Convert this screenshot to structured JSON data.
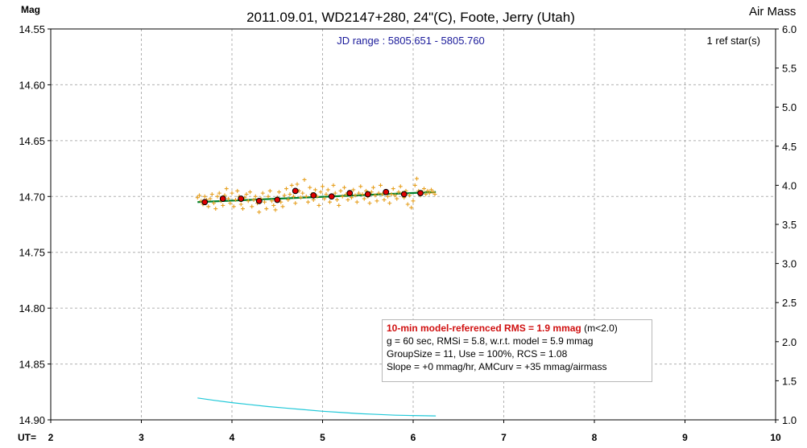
{
  "chart_data": {
    "type": "scatter",
    "title": "2011.09.01, WD2147+280, 24\"(C), Foote, Jerry (Utah)",
    "ylabel": "Mag",
    "y2label": "Air Mass",
    "xlabel": "UT=",
    "xlim": [
      2,
      10
    ],
    "ylim": [
      14.9,
      14.55
    ],
    "y2lim": [
      1.0,
      6.0
    ],
    "x_ticks": [
      "2",
      "3",
      "4",
      "5",
      "6",
      "7",
      "8",
      "9",
      "10"
    ],
    "y_ticks": [
      "14.55",
      "14.60",
      "14.65",
      "14.70",
      "14.75",
      "14.80",
      "14.85",
      "14.90"
    ],
    "y2_ticks": [
      "6.0",
      "5.5",
      "5.0",
      "4.5",
      "4.0",
      "3.5",
      "3.0",
      "2.5",
      "2.0",
      "1.5",
      "1.0"
    ],
    "grid": true,
    "annotations": {
      "jd_range": "JD range : 5805.651 - 5805.760",
      "ref_stars": "1 ref star(s)"
    },
    "series": [
      {
        "role": "individual_measurements",
        "color": "#e6a020",
        "marker": "plus",
        "points": [
          [
            3.62,
            14.701
          ],
          [
            3.64,
            14.699
          ],
          [
            3.66,
            14.704
          ],
          [
            3.68,
            14.707
          ],
          [
            3.7,
            14.7
          ],
          [
            3.72,
            14.703
          ],
          [
            3.74,
            14.709
          ],
          [
            3.76,
            14.702
          ],
          [
            3.78,
            14.698
          ],
          [
            3.8,
            14.706
          ],
          [
            3.82,
            14.711
          ],
          [
            3.84,
            14.7
          ],
          [
            3.86,
            14.697
          ],
          [
            3.88,
            14.704
          ],
          [
            3.9,
            14.708
          ],
          [
            3.92,
            14.699
          ],
          [
            3.94,
            14.693
          ],
          [
            3.96,
            14.702
          ],
          [
            3.98,
            14.706
          ],
          [
            4.0,
            14.697
          ],
          [
            4.02,
            14.709
          ],
          [
            4.04,
            14.703
          ],
          [
            4.06,
            14.695
          ],
          [
            4.08,
            14.7
          ],
          [
            4.1,
            14.707
          ],
          [
            4.12,
            14.711
          ],
          [
            4.14,
            14.701
          ],
          [
            4.16,
            14.698
          ],
          [
            4.18,
            14.704
          ],
          [
            4.2,
            14.696
          ],
          [
            4.22,
            14.709
          ],
          [
            4.24,
            14.703
          ],
          [
            4.26,
            14.7
          ],
          [
            4.28,
            14.706
          ],
          [
            4.3,
            14.714
          ],
          [
            4.32,
            14.702
          ],
          [
            4.34,
            14.697
          ],
          [
            4.36,
            14.705
          ],
          [
            4.38,
            14.711
          ],
          [
            4.4,
            14.7
          ],
          [
            4.42,
            14.695
          ],
          [
            4.44,
            14.704
          ],
          [
            4.46,
            14.708
          ],
          [
            4.48,
            14.712
          ],
          [
            4.5,
            14.701
          ],
          [
            4.52,
            14.696
          ],
          [
            4.54,
            14.705
          ],
          [
            4.56,
            14.709
          ],
          [
            4.58,
            14.699
          ],
          [
            4.6,
            14.693
          ],
          [
            4.62,
            14.703
          ],
          [
            4.64,
            14.698
          ],
          [
            4.66,
            14.69
          ],
          [
            4.68,
            14.7
          ],
          [
            4.7,
            14.706
          ],
          [
            4.72,
            14.689
          ],
          [
            4.74,
            14.695
          ],
          [
            4.76,
            14.701
          ],
          [
            4.78,
            14.697
          ],
          [
            4.8,
            14.685
          ],
          [
            4.82,
            14.7
          ],
          [
            4.84,
            14.705
          ],
          [
            4.86,
            14.692
          ],
          [
            4.88,
            14.698
          ],
          [
            4.9,
            14.703
          ],
          [
            4.92,
            14.694
          ],
          [
            4.94,
            14.7
          ],
          [
            4.96,
            14.708
          ],
          [
            4.98,
            14.696
          ],
          [
            5.0,
            14.691
          ],
          [
            5.02,
            14.702
          ],
          [
            5.04,
            14.698
          ],
          [
            5.06,
            14.694
          ],
          [
            5.08,
            14.705
          ],
          [
            5.1,
            14.699
          ],
          [
            5.12,
            14.69
          ],
          [
            5.14,
            14.697
          ],
          [
            5.16,
            14.703
          ],
          [
            5.18,
            14.708
          ],
          [
            5.2,
            14.695
          ],
          [
            5.22,
            14.7
          ],
          [
            5.24,
            14.692
          ],
          [
            5.26,
            14.698
          ],
          [
            5.28,
            14.703
          ],
          [
            5.3,
            14.696
          ],
          [
            5.32,
            14.701
          ],
          [
            5.34,
            14.694
          ],
          [
            5.36,
            14.699
          ],
          [
            5.38,
            14.705
          ],
          [
            5.4,
            14.697
          ],
          [
            5.42,
            14.691
          ],
          [
            5.44,
            14.698
          ],
          [
            5.46,
            14.702
          ],
          [
            5.48,
            14.695
          ],
          [
            5.5,
            14.7
          ],
          [
            5.52,
            14.706
          ],
          [
            5.54,
            14.696
          ],
          [
            5.56,
            14.692
          ],
          [
            5.58,
            14.699
          ],
          [
            5.6,
            14.704
          ],
          [
            5.62,
            14.697
          ],
          [
            5.64,
            14.69
          ],
          [
            5.66,
            14.698
          ],
          [
            5.68,
            14.703
          ],
          [
            5.7,
            14.695
          ],
          [
            5.72,
            14.7
          ],
          [
            5.74,
            14.706
          ],
          [
            5.76,
            14.698
          ],
          [
            5.78,
            14.693
          ],
          [
            5.8,
            14.699
          ],
          [
            5.82,
            14.702
          ],
          [
            5.84,
            14.696
          ],
          [
            5.86,
            14.691
          ],
          [
            5.88,
            14.697
          ],
          [
            5.9,
            14.701
          ],
          [
            5.92,
            14.695
          ],
          [
            5.94,
            14.707
          ],
          [
            5.96,
            14.699
          ],
          [
            5.98,
            14.71
          ],
          [
            6.0,
            14.704
          ],
          [
            6.02,
            14.69
          ],
          [
            6.04,
            14.684
          ],
          [
            6.06,
            14.695
          ],
          [
            6.08,
            14.699
          ],
          [
            6.1,
            14.696
          ],
          [
            6.12,
            14.693
          ],
          [
            6.14,
            14.698
          ],
          [
            6.16,
            14.695
          ],
          [
            6.18,
            14.697
          ],
          [
            6.2,
            14.694
          ],
          [
            6.22,
            14.696
          ],
          [
            6.24,
            14.698
          ]
        ]
      },
      {
        "role": "group_means",
        "color": "#e00000",
        "marker": "circle",
        "points": [
          [
            3.7,
            14.705
          ],
          [
            3.9,
            14.702
          ],
          [
            4.1,
            14.702
          ],
          [
            4.3,
            14.704
          ],
          [
            4.5,
            14.703
          ],
          [
            4.7,
            14.695
          ],
          [
            4.9,
            14.699
          ],
          [
            5.1,
            14.7
          ],
          [
            5.3,
            14.697
          ],
          [
            5.5,
            14.698
          ],
          [
            5.7,
            14.696
          ],
          [
            5.9,
            14.698
          ],
          [
            6.08,
            14.697
          ]
        ]
      },
      {
        "role": "model_fit",
        "color": "#00802a",
        "type": "line",
        "points": [
          [
            3.62,
            14.705
          ],
          [
            6.25,
            14.696
          ]
        ]
      },
      {
        "role": "air_mass",
        "color": "#20c8d8",
        "type": "line",
        "axis": "y2",
        "points": [
          [
            3.62,
            1.28
          ],
          [
            3.8,
            1.25
          ],
          [
            4.0,
            1.22
          ],
          [
            4.2,
            1.195
          ],
          [
            4.4,
            1.17
          ],
          [
            4.6,
            1.15
          ],
          [
            4.8,
            1.13
          ],
          [
            5.0,
            1.11
          ],
          [
            5.2,
            1.095
          ],
          [
            5.4,
            1.08
          ],
          [
            5.6,
            1.07
          ],
          [
            5.8,
            1.06
          ],
          [
            6.0,
            1.055
          ],
          [
            6.25,
            1.05
          ]
        ]
      }
    ]
  },
  "stats_box": {
    "line1_main": "10-min model-referenced RMS = 1.9 mmag",
    "line1_suffix": " (m<2.0)",
    "line2": "g = 60 sec, RMSi = 5.8, w.r.t. model = 5.9 mmag",
    "line3": "GroupSize = 11, Use = 100%, RCS = 1.08",
    "line4": "Slope = +0 mmag/hr, AMCurv = +35 mmag/airmass"
  }
}
